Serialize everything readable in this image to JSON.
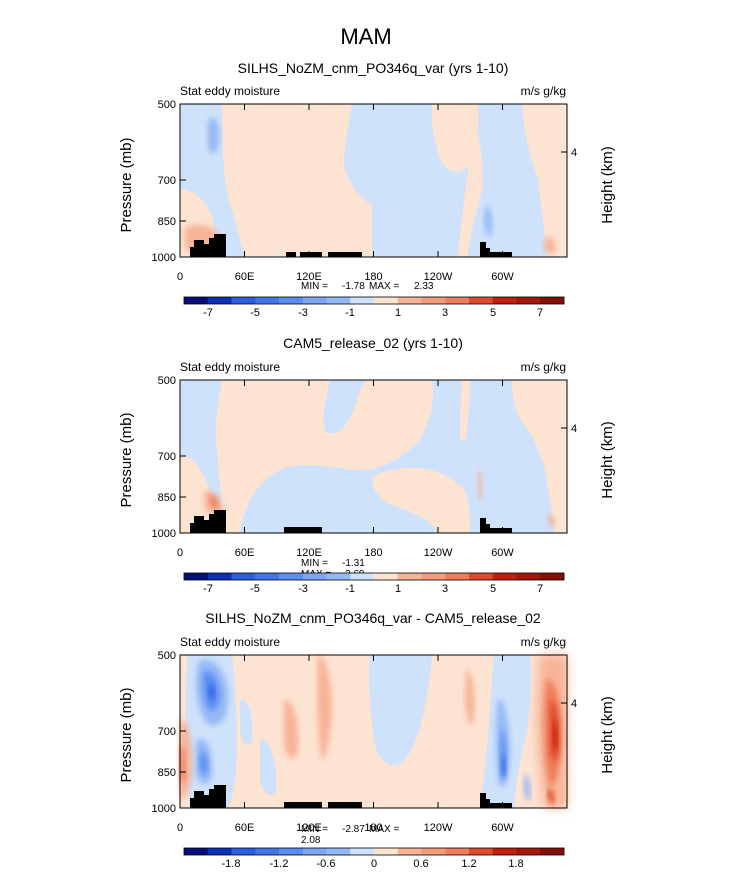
{
  "figure": {
    "title": "MAM"
  },
  "colors": {
    "neg": [
      "#050f7a",
      "#0e2fb8",
      "#2a5fe0",
      "#5b8ef2",
      "#95b9f6",
      "#cfe2fb"
    ],
    "pos": [
      "#fde3d2",
      "#f7b397",
      "#ef7d5c",
      "#e04a2a",
      "#c11f10",
      "#851006"
    ],
    "land": "#000000",
    "frame": "#000000"
  },
  "chart_data": [
    {
      "type": "heatmap",
      "title": "SILHS_NoZM_cnm_PO346q_var (yrs 1-10)",
      "left_label": "Stat eddy moisture",
      "right_label": "m/s g/kg",
      "ylabel": "Pressure (mb)",
      "y2label": "Height (km)",
      "yticks": [
        "500",
        "700",
        "850",
        "1000"
      ],
      "y2ticks": [
        "4"
      ],
      "xticks": [
        "0",
        "60E",
        "120E",
        "180",
        "120W",
        "60W"
      ],
      "min_label": "MIN =",
      "min_value": "-1.78",
      "max_label": "MAX =",
      "max_value": "2.33",
      "colorbar_ticks": [
        "-7",
        "-5",
        "-3",
        "-1",
        "1",
        "3",
        "5",
        "7"
      ]
    },
    {
      "type": "heatmap",
      "title": "CAM5_release_02 (yrs 1-10)",
      "left_label": "Stat eddy moisture",
      "right_label": "m/s g/kg",
      "ylabel": "Pressure (mb)",
      "y2label": "Height (km)",
      "yticks": [
        "500",
        "700",
        "850",
        "1000"
      ],
      "y2ticks": [
        "4"
      ],
      "xticks": [
        "0",
        "60E",
        "120E",
        "180",
        "120W",
        "60W"
      ],
      "min_label": "MIN =",
      "min_value": "-1.31",
      "max_label": "MAX =",
      "max_value": "3.69",
      "colorbar_ticks": [
        "-7",
        "-5",
        "-3",
        "-1",
        "1",
        "3",
        "5",
        "7"
      ]
    },
    {
      "type": "heatmap",
      "title": "SILHS_NoZM_cnm_PO346q_var - CAM5_release_02",
      "left_label": "Stat eddy moisture",
      "right_label": "m/s g/kg",
      "ylabel": "Pressure (mb)",
      "y2label": "Height (km)",
      "yticks": [
        "500",
        "700",
        "850",
        "1000"
      ],
      "y2ticks": [
        "4"
      ],
      "xticks": [
        "0",
        "60E",
        "120E",
        "180",
        "120W",
        "60W"
      ],
      "min_label": "MIN =",
      "min_value": "-2.87",
      "max_label": "MAX =",
      "max_value": "2.08",
      "colorbar_ticks": [
        "-1.8",
        "-1.2",
        "-0.6",
        "0",
        "0.6",
        "1.2",
        "1.8"
      ]
    }
  ]
}
